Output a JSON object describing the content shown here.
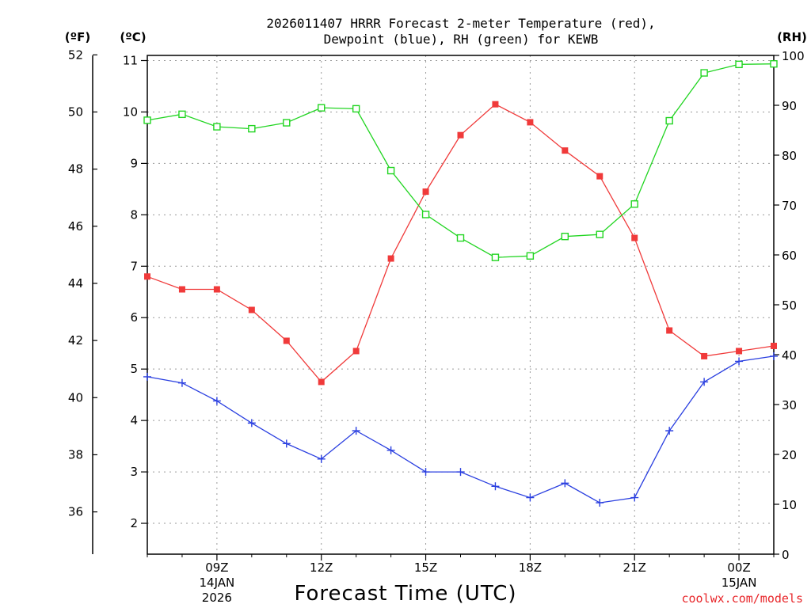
{
  "chart_data": {
    "type": "line",
    "title_lines": [
      "2026011407 HRRR Forecast 2-meter Temperature (red),",
      "Dewpoint (blue), RH (green) for KEWB"
    ],
    "xlabel": "Forecast Time (UTC)",
    "credit": "coolwx.com/models",
    "units": {
      "fahrenheit": "(ºF)",
      "celsius": "(ºC)",
      "rh": "(RH)"
    },
    "x_hours": [
      7,
      8,
      9,
      10,
      11,
      12,
      13,
      14,
      15,
      16,
      17,
      18,
      19,
      20,
      21,
      22,
      23,
      24,
      25
    ],
    "x_range": [
      7,
      25
    ],
    "x_ticks": [
      {
        "hour": 9,
        "label": "09Z",
        "date_line1": "14JAN",
        "date_line2": "2026"
      },
      {
        "hour": 12,
        "label": "12Z"
      },
      {
        "hour": 15,
        "label": "15Z"
      },
      {
        "hour": 18,
        "label": "18Z"
      },
      {
        "hour": 21,
        "label": "21Z"
      },
      {
        "hour": 24,
        "label": "00Z",
        "date_line1": "15JAN"
      }
    ],
    "celsius_axis": {
      "range": [
        1.4,
        11.1
      ],
      "ticks": [
        2,
        3,
        4,
        5,
        6,
        7,
        8,
        9,
        10,
        11
      ]
    },
    "fahrenheit_axis": {
      "ticks": [
        36,
        38,
        40,
        42,
        44,
        46,
        48,
        50,
        52
      ]
    },
    "rh_axis": {
      "range": [
        0,
        100
      ],
      "ticks": [
        0,
        10,
        20,
        30,
        40,
        50,
        60,
        70,
        80,
        90,
        100
      ]
    },
    "series": [
      {
        "name": "Temperature",
        "units": "C",
        "color": "#f03a3a",
        "marker": "filled-square",
        "values": [
          6.8,
          6.55,
          6.55,
          6.15,
          5.55,
          4.75,
          5.35,
          7.15,
          8.45,
          9.55,
          10.15,
          9.8,
          9.25,
          8.75,
          7.55,
          5.75,
          5.25,
          5.35,
          5.45
        ]
      },
      {
        "name": "Dewpoint",
        "units": "C",
        "color": "#2a3fe0",
        "marker": "plus",
        "values": [
          4.85,
          4.73,
          4.38,
          3.95,
          3.55,
          3.25,
          3.8,
          3.42,
          3.0,
          3.0,
          2.72,
          2.5,
          2.78,
          2.4,
          2.5,
          3.8,
          4.75,
          5.15,
          5.25
        ]
      },
      {
        "name": "RH",
        "units": "%",
        "color": "#22d522",
        "marker": "open-square",
        "values": [
          87.0,
          88.2,
          85.7,
          85.3,
          86.5,
          89.5,
          89.3,
          76.9,
          68.1,
          63.4,
          59.5,
          59.8,
          63.7,
          64.1,
          70.2,
          86.9,
          96.5,
          98.2,
          98.3
        ]
      }
    ]
  }
}
